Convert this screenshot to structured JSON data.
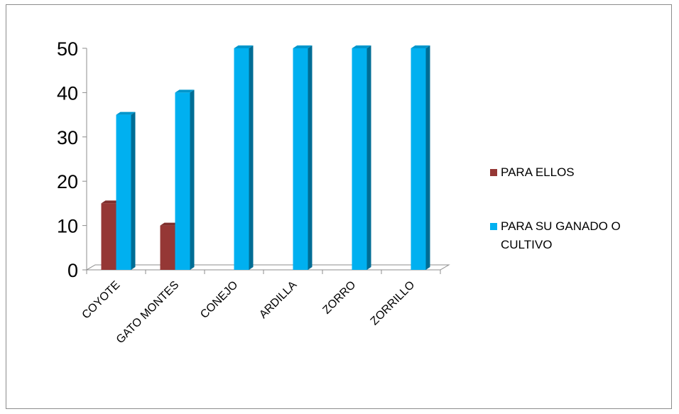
{
  "chart_data": {
    "type": "bar",
    "categories": [
      "COYOTE",
      "GATO MONTES",
      "CONEJO",
      "ARDILLA",
      "ZORRO",
      "ZORRILLO"
    ],
    "series": [
      {
        "name": "PARA ELLOS",
        "values": [
          15,
          10,
          0,
          0,
          0,
          0
        ],
        "color": "#953735"
      },
      {
        "name": "PARA SU GANADO O CULTIVO",
        "values": [
          35,
          40,
          50,
          50,
          50,
          50
        ],
        "color": "#00b0f0"
      }
    ],
    "y_ticks": [
      "0",
      "10",
      "20",
      "30",
      "40",
      "50"
    ],
    "ylim": [
      0,
      50
    ],
    "legend_position": "right",
    "style": "3d-clustered-column",
    "grid": false
  }
}
